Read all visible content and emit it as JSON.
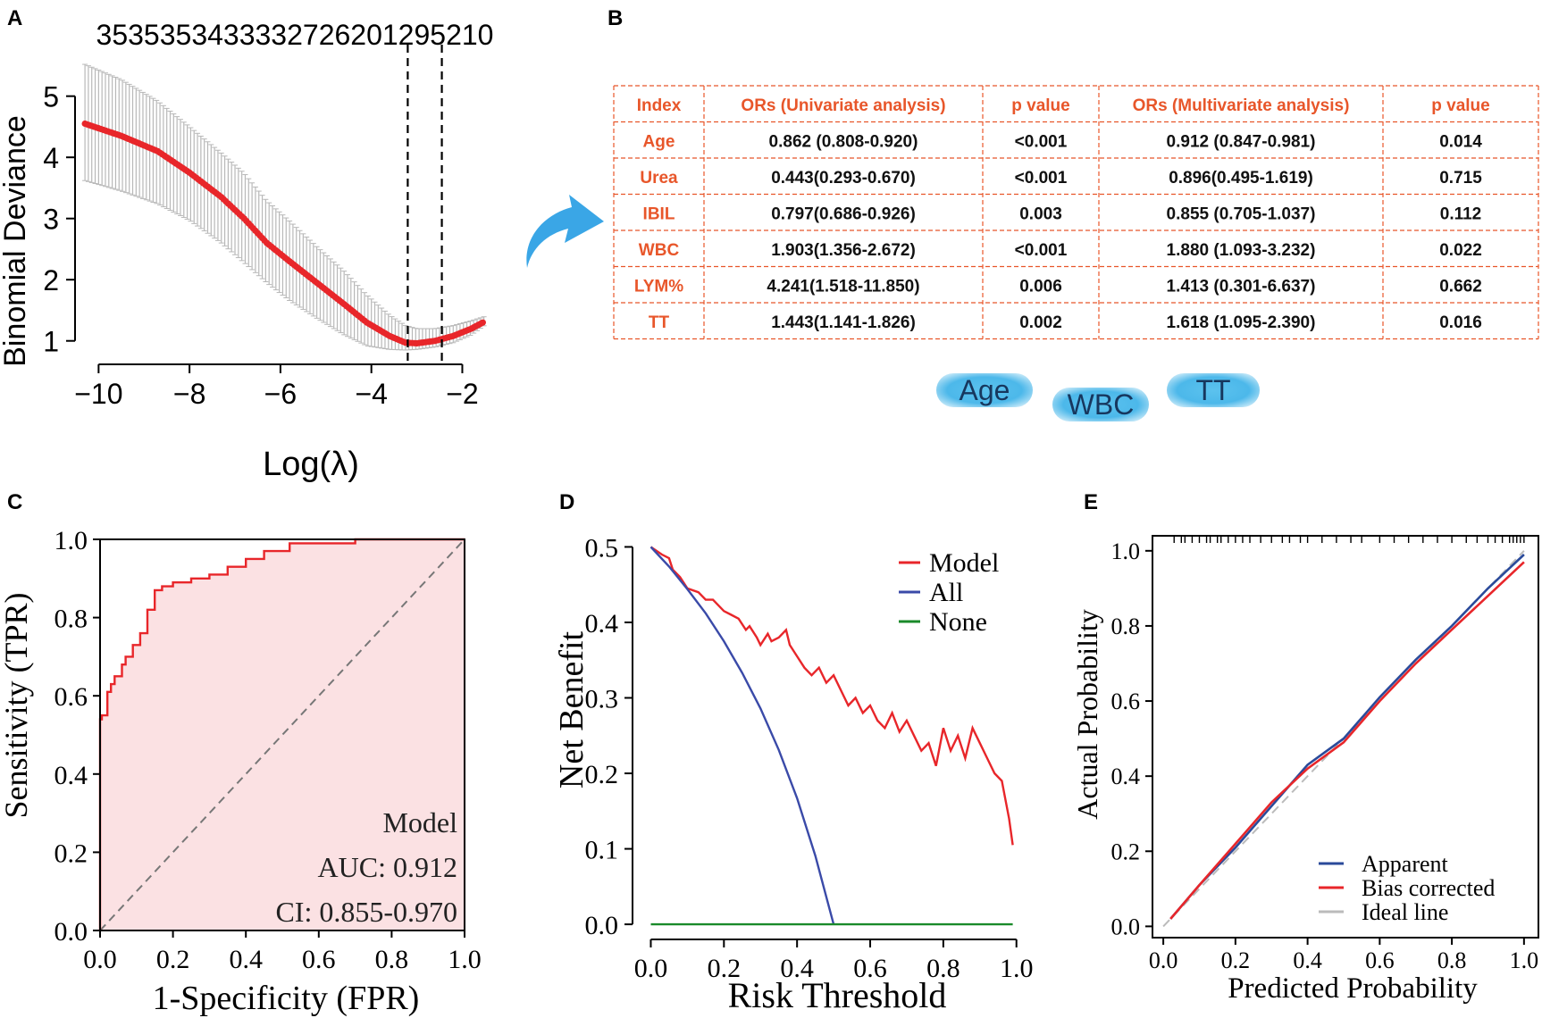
{
  "panels": {
    "A": "A",
    "B": "B",
    "C": "C",
    "D": "D",
    "E": "E"
  },
  "chart_data": [
    {
      "panel": "A",
      "type": "line",
      "title": "3535353433332726201295210",
      "xlabel": "Log(λ)",
      "ylabel": "Binomial Deviance",
      "xlim": [
        -10.4,
        -1.4
      ],
      "ylim": [
        0.85,
        5.55
      ],
      "xticks": [
        -10,
        -8,
        -6,
        -4,
        -2
      ],
      "yticks": [
        1,
        2,
        3,
        4,
        5
      ],
      "series": [
        {
          "name": "deviance",
          "x": [
            -10.3,
            -9.5,
            -8.7,
            -8.0,
            -7.3,
            -6.8,
            -6.3,
            -5.8,
            -5.2,
            -4.6,
            -4.1,
            -3.6,
            -3.25,
            -3.0,
            -2.6,
            -2.2,
            -1.8,
            -1.5
          ],
          "y": [
            4.55,
            4.35,
            4.1,
            3.75,
            3.35,
            3.0,
            2.6,
            2.3,
            1.95,
            1.6,
            1.3,
            1.08,
            0.97,
            0.96,
            1.0,
            1.08,
            1.2,
            1.32
          ],
          "upper": [
            5.52,
            5.27,
            4.92,
            4.5,
            4.07,
            3.74,
            3.29,
            2.96,
            2.54,
            2.14,
            1.75,
            1.42,
            1.25,
            1.2,
            1.2,
            1.25,
            1.33,
            1.4
          ],
          "lower": [
            3.62,
            3.45,
            3.24,
            2.97,
            2.6,
            2.28,
            1.95,
            1.66,
            1.37,
            1.1,
            0.92,
            0.86,
            0.85,
            0.86,
            0.9,
            0.97,
            1.1,
            1.26
          ]
        }
      ],
      "vlines": [
        -3.2,
        -2.45
      ]
    },
    {
      "panel": "B",
      "type": "table",
      "headers": [
        "Index",
        "ORs (Univariate analysis)",
        "p value",
        "ORs (Multivariate analysis)",
        "p value"
      ],
      "rows": [
        [
          "Age",
          "0.862 (0.808-0.920)",
          "<0.001",
          "0.912 (0.847-0.981)",
          "0.014"
        ],
        [
          "Urea",
          "0.443(0.293-0.670)",
          "<0.001",
          "0.896(0.495-1.619)",
          "0.715"
        ],
        [
          "IBIL",
          "0.797(0.686-0.926)",
          "0.003",
          "0.855 (0.705-1.037)",
          "0.112"
        ],
        [
          "WBC",
          "1.903(1.356-2.672)",
          "<0.001",
          "1.880 (1.093-3.232)",
          "0.022"
        ],
        [
          "LYM%",
          "4.241(1.518-11.850)",
          "0.006",
          "1.413 (0.301-6.637)",
          "0.662"
        ],
        [
          "TT",
          "1.443(1.141-1.826)",
          "0.002",
          "1.618 (1.095-2.390)",
          "0.016"
        ]
      ],
      "selected": [
        "Age",
        "WBC",
        "TT"
      ]
    },
    {
      "panel": "C",
      "type": "line",
      "xlabel": "1-Specificity (FPR)",
      "ylabel": "Sensitivity (TPR)",
      "xlim": [
        0,
        1
      ],
      "ylim": [
        0,
        1
      ],
      "xticks": [
        0.0,
        0.2,
        0.4,
        0.6,
        0.8,
        1.0
      ],
      "yticks": [
        0.0,
        0.2,
        0.4,
        0.6,
        0.8,
        1.0
      ],
      "tick_labels": [
        "0.0",
        "0.2",
        "0.4",
        "0.6",
        "0.8",
        "1.0"
      ],
      "annotation": [
        "Model",
        "AUC: 0.912",
        "CI: 0.855-0.970"
      ],
      "series": [
        {
          "name": "Model",
          "x": [
            0,
            0,
            0.005,
            0.005,
            0.02,
            0.02,
            0.03,
            0.03,
            0.04,
            0.04,
            0.06,
            0.06,
            0.07,
            0.07,
            0.09,
            0.09,
            0.11,
            0.11,
            0.13,
            0.13,
            0.15,
            0.15,
            0.17,
            0.17,
            0.2,
            0.2,
            0.25,
            0.25,
            0.3,
            0.3,
            0.35,
            0.35,
            0.4,
            0.4,
            0.45,
            0.45,
            0.52,
            0.52,
            0.7,
            0.7,
            1.0
          ],
          "y": [
            0,
            0.54,
            0.54,
            0.55,
            0.55,
            0.61,
            0.61,
            0.63,
            0.63,
            0.65,
            0.65,
            0.68,
            0.68,
            0.7,
            0.7,
            0.73,
            0.73,
            0.76,
            0.76,
            0.82,
            0.82,
            0.87,
            0.87,
            0.88,
            0.88,
            0.89,
            0.89,
            0.9,
            0.9,
            0.91,
            0.91,
            0.93,
            0.93,
            0.95,
            0.95,
            0.97,
            0.97,
            0.99,
            0.99,
            1.0,
            1.0
          ]
        },
        {
          "name": "reference",
          "x": [
            0,
            1
          ],
          "y": [
            0,
            1
          ]
        }
      ]
    },
    {
      "panel": "D",
      "type": "line",
      "xlabel": "Risk Threshold",
      "ylabel": "Net Benefit",
      "xlim": [
        -0.05,
        1.03
      ],
      "ylim": [
        -0.02,
        0.51
      ],
      "xticks": [
        0.0,
        0.2,
        0.4,
        0.6,
        0.8,
        1.0
      ],
      "yticks": [
        0.0,
        0.1,
        0.2,
        0.3,
        0.4,
        0.5
      ],
      "tick_labels_x": [
        "0.0",
        "0.2",
        "0.4",
        "0.6",
        "0.8",
        "1.0"
      ],
      "tick_labels_y": [
        "0.0",
        "0.1",
        "0.2",
        "0.3",
        "0.4",
        "0.5"
      ],
      "legend": [
        "Model",
        "All",
        "None"
      ],
      "colors": {
        "Model": "#e8262a",
        "All": "#3a4aa8",
        "None": "#1a8a2a"
      },
      "series": [
        {
          "name": "Model",
          "x": [
            0,
            0.03,
            0.05,
            0.06,
            0.08,
            0.1,
            0.13,
            0.15,
            0.17,
            0.2,
            0.22,
            0.24,
            0.26,
            0.27,
            0.29,
            0.3,
            0.32,
            0.33,
            0.35,
            0.37,
            0.38,
            0.4,
            0.42,
            0.44,
            0.46,
            0.48,
            0.5,
            0.52,
            0.54,
            0.56,
            0.58,
            0.6,
            0.62,
            0.64,
            0.66,
            0.68,
            0.7,
            0.72,
            0.74,
            0.76,
            0.78,
            0.8,
            0.82,
            0.84,
            0.86,
            0.88,
            0.9,
            0.92,
            0.94,
            0.96,
            0.98,
            0.99
          ],
          "y": [
            0.5,
            0.49,
            0.485,
            0.47,
            0.46,
            0.445,
            0.44,
            0.43,
            0.43,
            0.415,
            0.41,
            0.405,
            0.39,
            0.395,
            0.38,
            0.37,
            0.385,
            0.375,
            0.38,
            0.39,
            0.37,
            0.355,
            0.34,
            0.33,
            0.34,
            0.32,
            0.33,
            0.31,
            0.29,
            0.3,
            0.28,
            0.29,
            0.27,
            0.26,
            0.28,
            0.255,
            0.27,
            0.25,
            0.23,
            0.24,
            0.21,
            0.26,
            0.23,
            0.25,
            0.22,
            0.26,
            0.24,
            0.22,
            0.2,
            0.19,
            0.14,
            0.105
          ]
        },
        {
          "name": "All",
          "x": [
            0,
            0.05,
            0.1,
            0.15,
            0.2,
            0.25,
            0.3,
            0.35,
            0.4,
            0.45,
            0.5
          ],
          "y": [
            0.5,
            0.474,
            0.444,
            0.412,
            0.375,
            0.333,
            0.286,
            0.231,
            0.167,
            0.091,
            0.0
          ]
        },
        {
          "name": "None",
          "x": [
            0,
            0.99
          ],
          "y": [
            0,
            0
          ]
        }
      ]
    },
    {
      "panel": "E",
      "type": "line",
      "xlabel": "Predicted Probability",
      "ylabel": "Actual Probability",
      "xlim": [
        -0.03,
        1.04
      ],
      "ylim": [
        -0.03,
        1.04
      ],
      "xticks": [
        0.0,
        0.2,
        0.4,
        0.6,
        0.8,
        1.0
      ],
      "yticks": [
        0.0,
        0.2,
        0.4,
        0.6,
        0.8,
        1.0
      ],
      "tick_labels": [
        "0.0",
        "0.2",
        "0.4",
        "0.6",
        "0.8",
        "1.0"
      ],
      "legend": [
        "Apparent",
        "Bias corrected",
        "Ideal line"
      ],
      "colors": {
        "Apparent": "#2a4a9a",
        "Bias corrected": "#e8262a",
        "Ideal line": "#bbbbbb"
      },
      "series": [
        {
          "name": "Apparent",
          "x": [
            0.02,
            0.1,
            0.2,
            0.3,
            0.4,
            0.5,
            0.6,
            0.7,
            0.8,
            0.9,
            1.0
          ],
          "y": [
            0.02,
            0.11,
            0.21,
            0.32,
            0.43,
            0.5,
            0.61,
            0.71,
            0.8,
            0.9,
            0.99
          ]
        },
        {
          "name": "Bias corrected",
          "x": [
            0.02,
            0.1,
            0.2,
            0.3,
            0.4,
            0.5,
            0.6,
            0.7,
            0.8,
            0.9,
            1.0
          ],
          "y": [
            0.02,
            0.11,
            0.22,
            0.33,
            0.42,
            0.49,
            0.6,
            0.7,
            0.79,
            0.88,
            0.97
          ]
        },
        {
          "name": "Ideal line",
          "x": [
            0,
            1
          ],
          "y": [
            0,
            1
          ]
        }
      ],
      "rug": [
        0.03,
        0.05,
        0.06,
        0.08,
        0.1,
        0.12,
        0.13,
        0.15,
        0.16,
        0.18,
        0.2,
        0.22,
        0.24,
        0.27,
        0.3,
        0.33,
        0.35,
        0.38,
        0.4,
        0.44,
        0.48,
        0.52,
        0.55,
        0.6,
        0.64,
        0.68,
        0.72,
        0.76,
        0.8,
        0.84,
        0.87,
        0.9,
        0.92,
        0.94,
        0.96,
        0.97,
        0.98,
        0.99,
        1.0
      ]
    }
  ]
}
